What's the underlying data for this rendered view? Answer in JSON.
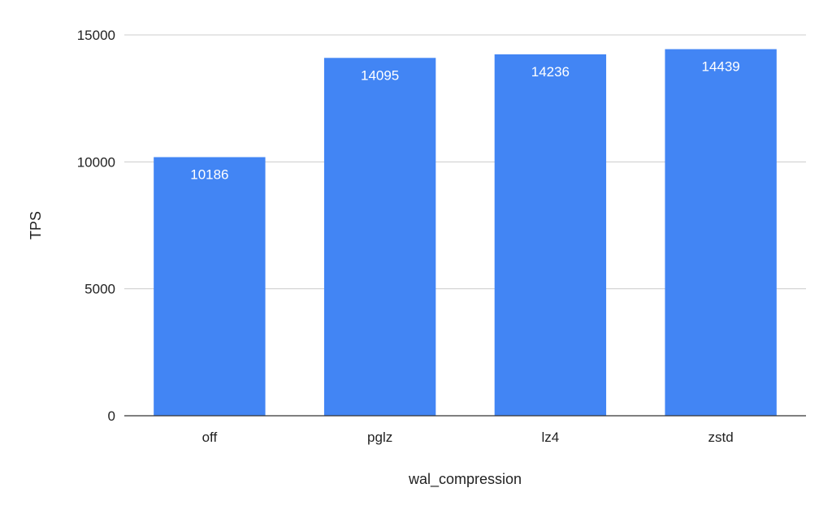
{
  "chart_data": {
    "type": "bar",
    "categories": [
      "off",
      "pglz",
      "lz4",
      "zstd"
    ],
    "values": [
      10186,
      14095,
      14236,
      14439
    ],
    "data_labels": [
      "10186",
      "14095",
      "14236",
      "14439"
    ],
    "title": "",
    "xlabel": "wal_compression",
    "ylabel": "TPS",
    "ylim": [
      0,
      15000
    ],
    "yticks": [
      0,
      5000,
      10000,
      15000
    ],
    "ytick_labels": [
      "0",
      "5000",
      "10000",
      "15000"
    ],
    "grid": true,
    "legend": "none",
    "bar_color": "#4285f4"
  }
}
